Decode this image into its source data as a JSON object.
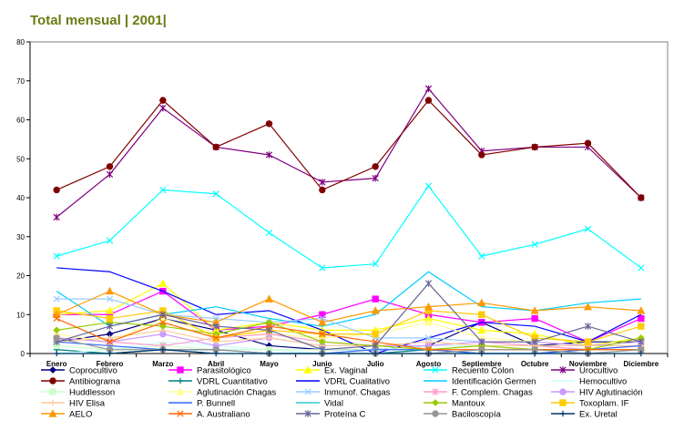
{
  "title": "Total mensual | 2001|",
  "chart_data": {
    "type": "line",
    "title": "Total mensual | 2001|",
    "categories": [
      "Enero",
      "Febrero",
      "Marzo",
      "Abril",
      "Mayo",
      "Junio",
      "Julio",
      "Agosto",
      "Septiembre",
      "Octubre",
      "Noviembre",
      "Diciembre"
    ],
    "ylim": [
      0,
      80
    ],
    "yticks": [
      0,
      10,
      20,
      30,
      40,
      50,
      60,
      70,
      80
    ],
    "grid": false,
    "legend_position": "bottom",
    "series": [
      {
        "name": "Coprocultivo",
        "color": "#000080",
        "marker": "diamond",
        "values": [
          3,
          5,
          9,
          6,
          2,
          1,
          1,
          2,
          8,
          2,
          3,
          3
        ]
      },
      {
        "name": "Parasitológico",
        "color": "#ff00ff",
        "marker": "square",
        "values": [
          10,
          10,
          16,
          6,
          7,
          10,
          14,
          10,
          8,
          9,
          3,
          9
        ]
      },
      {
        "name": "Ex. Vaginal",
        "color": "#ffff00",
        "marker": "triangle",
        "values": [
          10,
          11,
          18,
          6,
          8,
          6,
          6,
          9,
          6,
          5,
          2,
          4
        ]
      },
      {
        "name": "Recuento Colon",
        "color": "#00ffff",
        "marker": "x",
        "values": [
          25,
          29,
          42,
          41,
          31,
          22,
          23,
          43,
          25,
          28,
          32,
          22
        ]
      },
      {
        "name": "Urocultivo",
        "color": "#800080",
        "marker": "star",
        "values": [
          35,
          46,
          63,
          53,
          51,
          44,
          45,
          68,
          52,
          53,
          53,
          40
        ]
      },
      {
        "name": "Antibiograma",
        "color": "#800000",
        "marker": "circle",
        "values": [
          42,
          48,
          65,
          53,
          59,
          42,
          48,
          65,
          51,
          53,
          54,
          40
        ]
      },
      {
        "name": "VDRL Cuantitativo",
        "color": "#008080",
        "marker": "plus",
        "values": [
          1,
          0,
          1,
          1,
          0,
          0,
          0,
          1,
          0,
          0,
          1,
          1
        ]
      },
      {
        "name": "VDRL Cualitativo",
        "color": "#0000ff",
        "marker": "none",
        "values": [
          22,
          21,
          16,
          10,
          11,
          6,
          0,
          4,
          8,
          7,
          3,
          10
        ]
      },
      {
        "name": "Identificación Germen",
        "color": "#00ccff",
        "marker": "none",
        "values": [
          16,
          7,
          10,
          12,
          9,
          7,
          10,
          21,
          12,
          11,
          13,
          14
        ]
      },
      {
        "name": "Hemocultivo",
        "color": "#ccffff",
        "marker": "none",
        "values": [
          0,
          1,
          3,
          2,
          1,
          0,
          1,
          2,
          2,
          1,
          1,
          1
        ]
      },
      {
        "name": "Huddlesson",
        "color": "#ccffcc",
        "marker": "square",
        "values": [
          2,
          1,
          2,
          1,
          1,
          1,
          1,
          1,
          2,
          1,
          1,
          1
        ]
      },
      {
        "name": "Aglutinación Chagas",
        "color": "#ffff99",
        "marker": "triangle",
        "values": [
          5,
          3,
          9,
          5,
          5,
          4,
          5,
          8,
          4,
          3,
          2,
          3
        ]
      },
      {
        "name": "Inmunof. Chagas",
        "color": "#99ccff",
        "marker": "x",
        "values": [
          14,
          14,
          10,
          9,
          8,
          9,
          4,
          4,
          3,
          2,
          1,
          1
        ]
      },
      {
        "name": "F. Complem. Chagas",
        "color": "#ff99cc",
        "marker": "star",
        "values": [
          4,
          3,
          2,
          4,
          5,
          3,
          2,
          2,
          3,
          2,
          1,
          2
        ]
      },
      {
        "name": "HIV Aglutinación",
        "color": "#cc99ff",
        "marker": "circle",
        "values": [
          4,
          3,
          5,
          2,
          4,
          2,
          2,
          2,
          3,
          3,
          2,
          3
        ]
      },
      {
        "name": "HIV Elisa",
        "color": "#ffcc99",
        "marker": "plus",
        "values": [
          3,
          4,
          6,
          3,
          4,
          2,
          2,
          3,
          2,
          2,
          2,
          2
        ]
      },
      {
        "name": "P. Bunnell",
        "color": "#3366ff",
        "marker": "none",
        "values": [
          3,
          2,
          1,
          1,
          0,
          0,
          1,
          1,
          0,
          0,
          1,
          2
        ]
      },
      {
        "name": "Vidal",
        "color": "#33cccc",
        "marker": "none",
        "values": [
          0,
          0,
          1,
          0,
          0,
          0,
          0,
          0,
          0,
          0,
          0,
          0
        ]
      },
      {
        "name": "Mantoux",
        "color": "#99cc00",
        "marker": "diamond",
        "values": [
          6,
          8,
          7,
          5,
          8,
          3,
          2,
          1,
          2,
          1,
          1,
          4
        ]
      },
      {
        "name": "Toxoplam. IF",
        "color": "#ffcc00",
        "marker": "square",
        "values": [
          11,
          9,
          11,
          4,
          6,
          5,
          5,
          11,
          10,
          4,
          3,
          7
        ]
      },
      {
        "name": "AELO",
        "color": "#ff9900",
        "marker": "triangle",
        "values": [
          10,
          16,
          10,
          8,
          14,
          8,
          11,
          12,
          13,
          11,
          12,
          11
        ]
      },
      {
        "name": "A. Australiano",
        "color": "#ff6600",
        "marker": "x",
        "values": [
          9,
          3,
          8,
          4,
          7,
          5,
          3,
          1,
          1,
          1,
          1,
          1
        ]
      },
      {
        "name": "Proteína C",
        "color": "#666699",
        "marker": "star",
        "values": [
          3,
          7,
          10,
          7,
          6,
          1,
          2,
          18,
          3,
          3,
          7,
          3
        ]
      },
      {
        "name": "Baciloscopía",
        "color": "#969696",
        "marker": "circle",
        "values": [
          4,
          1,
          1,
          1,
          0,
          0,
          0,
          0,
          1,
          1,
          0,
          1
        ]
      },
      {
        "name": "Ex. Uretal",
        "color": "#003366",
        "marker": "plus",
        "values": [
          0,
          0,
          1,
          0,
          0,
          0,
          0,
          0,
          0,
          0,
          0,
          0
        ]
      }
    ]
  }
}
